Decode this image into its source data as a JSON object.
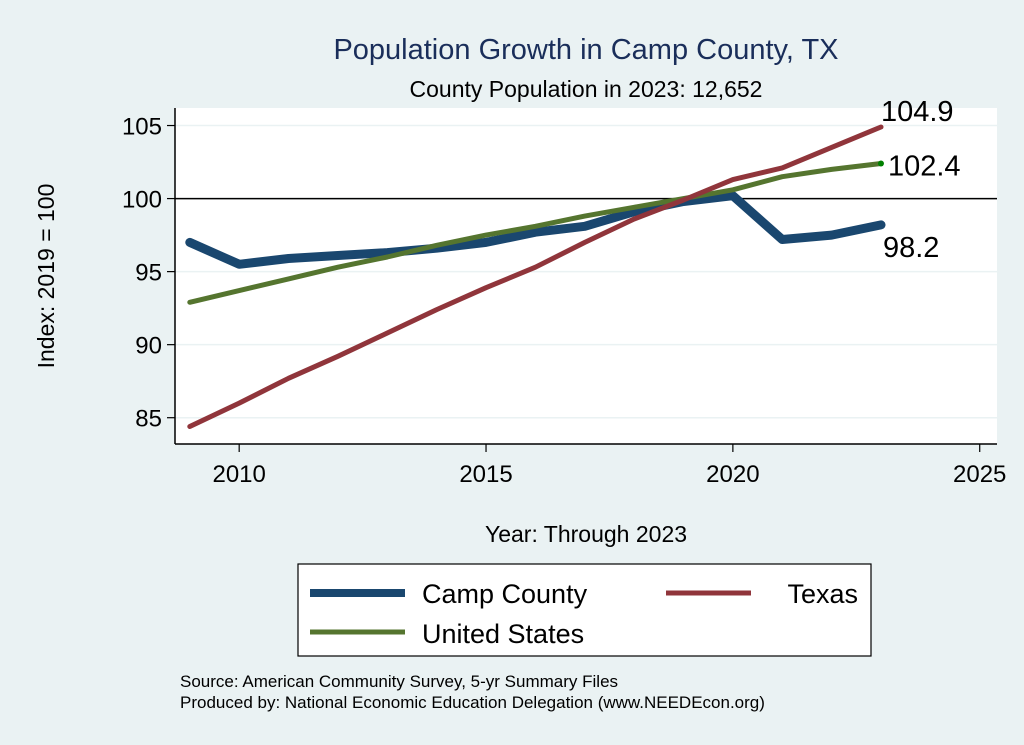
{
  "chart_data": {
    "type": "line",
    "title": "Population Growth in Camp County, TX",
    "subtitle": "County Population in 2023: 12,652",
    "xlabel": "Year: Through 2023",
    "ylabel": "Index: 2019 = 100",
    "xlim": [
      2008.7,
      2025.35
    ],
    "ylim": [
      83.2,
      106.2
    ],
    "xticks": [
      2010,
      2015,
      2020,
      2025
    ],
    "xtick_labels": [
      "2010",
      "2015",
      "2020",
      "2025"
    ],
    "yticks": [
      85,
      90,
      95,
      100,
      105
    ],
    "ytick_labels": [
      "85",
      "90",
      "95",
      "100",
      "105"
    ],
    "grid": true,
    "reference_line": 100,
    "x": [
      2009,
      2010,
      2011,
      2012,
      2013,
      2014,
      2015,
      2016,
      2017,
      2018,
      2019,
      2020,
      2021,
      2022,
      2023
    ],
    "series": [
      {
        "name": "Camp  County",
        "color": "#1a476f",
        "width": "thick",
        "values": [
          97.0,
          95.5,
          95.9,
          96.1,
          96.3,
          96.6,
          97.0,
          97.7,
          98.1,
          99.1,
          99.8,
          100.2,
          97.2,
          97.5,
          98.2
        ],
        "end_label": "98.2"
      },
      {
        "name": "Texas",
        "color": "#90353b",
        "width": "medium",
        "values": [
          84.4,
          86.0,
          87.7,
          89.2,
          90.8,
          92.4,
          93.9,
          95.3,
          97.0,
          98.6,
          99.9,
          101.3,
          102.1,
          103.5,
          104.9
        ],
        "end_label": "104.9"
      },
      {
        "name": "United States",
        "color": "#55752f",
        "width": "medium",
        "values": [
          92.9,
          93.7,
          94.5,
          95.3,
          96.0,
          96.8,
          97.5,
          98.1,
          98.8,
          99.4,
          100.0,
          100.6,
          101.5,
          102.0,
          102.4
        ],
        "end_label": "102.4"
      }
    ],
    "legend": {
      "placement": "bottom",
      "entries": [
        "Camp  County",
        "Texas",
        "United States"
      ]
    },
    "notes": [
      "Source: American Community Survey, 5-yr Summary Files",
      "Produced by: National Economic Education Delegation (www.NEEDEcon.org)"
    ]
  }
}
